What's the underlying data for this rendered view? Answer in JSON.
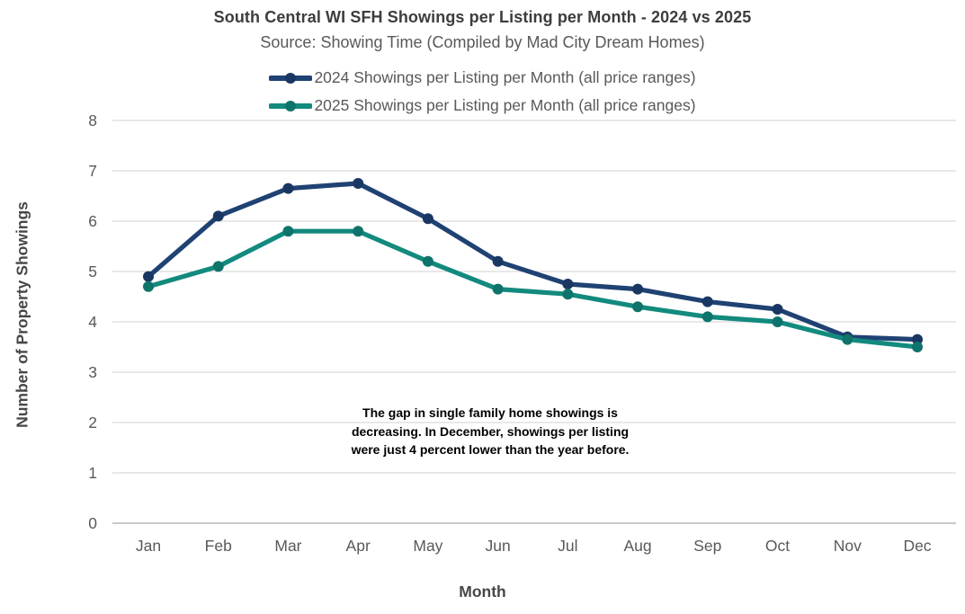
{
  "chart_data": {
    "type": "line",
    "title": "South Central WI SFH Showings per Listing per Month - 2024 vs 2025",
    "subtitle": "Source: Showing Time (Compiled by Mad City Dream Homes)",
    "xlabel": "Month",
    "ylabel": "Number of Property Showings",
    "categories": [
      "Jan",
      "Feb",
      "Mar",
      "Apr",
      "May",
      "Jun",
      "Jul",
      "Aug",
      "Sep",
      "Oct",
      "Nov",
      "Dec"
    ],
    "series": [
      {
        "name": "2024 Showings per Listing per Month (all price ranges)",
        "color": "#1F4273",
        "marker_color": "#1A3763",
        "values": [
          4.9,
          6.1,
          6.65,
          6.75,
          6.05,
          5.2,
          4.75,
          4.65,
          4.4,
          4.25,
          3.7,
          3.65
        ]
      },
      {
        "name": "2025 Showings per Listing per Month (all price ranges)",
        "color": "#128A7E",
        "marker_color": "#0E746B",
        "values": [
          4.7,
          5.1,
          5.8,
          5.8,
          5.2,
          4.65,
          4.55,
          4.3,
          4.1,
          4.0,
          3.65,
          3.5
        ]
      }
    ],
    "ylim": [
      0,
      8
    ],
    "ytick_interval": 1,
    "grid": true,
    "grid_color": "#DBDBDB",
    "baseline_color": "#C9C9C9",
    "axis_text_color": "#595959",
    "legend_position": "top",
    "annotation": {
      "text": "The gap in single family home showings is\ndecreasing. In December, showings per listing\nwere just 4 percent lower than the year before."
    }
  }
}
